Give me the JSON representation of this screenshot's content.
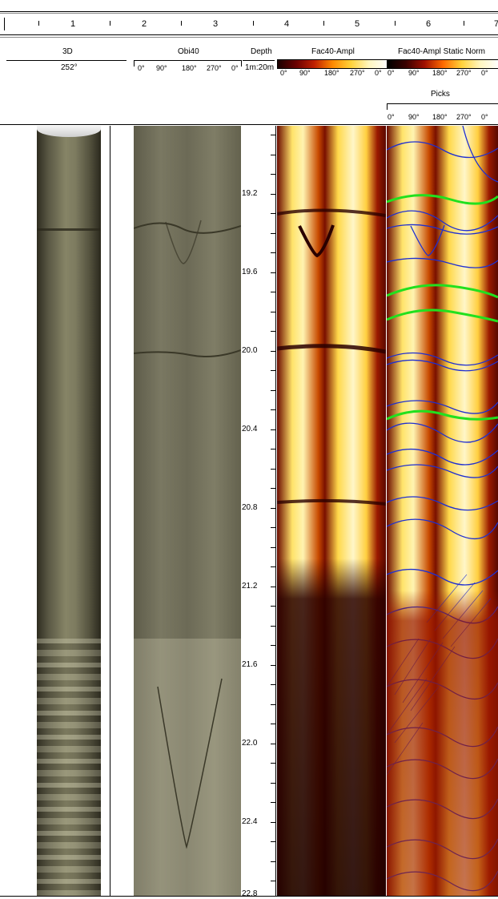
{
  "ruler": {
    "numbers": [
      "1",
      "2",
      "3",
      "4",
      "5",
      "6",
      "7"
    ]
  },
  "tracks": {
    "t1": {
      "title": "3D",
      "subtitle": "252°"
    },
    "t2": {
      "title": "Obi40",
      "scale": [
        "0°",
        "90°",
        "180°",
        "270°",
        "0°"
      ]
    },
    "t3": {
      "title": "Depth",
      "subtitle": "1m:20m"
    },
    "t4": {
      "title": "Fac40-Ampl",
      "scale": [
        "0°",
        "90°",
        "180°",
        "270°",
        "0°"
      ]
    },
    "t5": {
      "title": "Fac40-Ampl Static Norm",
      "scale": [
        "0°",
        "90°",
        "180°",
        "270°",
        "0°"
      ],
      "picks_title": "Picks",
      "picks_scale": [
        "0°",
        "90°",
        "180°",
        "270°",
        "0°"
      ]
    }
  },
  "depths": [
    "19.2",
    "19.6",
    "20.0",
    "20.4",
    "20.8",
    "21.2",
    "21.6",
    "22.0",
    "22.4",
    "22.8"
  ],
  "colors": {
    "amp_dark": "#2a0000",
    "amp_mid": "#c02000",
    "amp_bright": "#ffd23a",
    "amp_white": "#fffbe0",
    "pick_blue": "#1f2fd0",
    "pick_green": "#22e01e",
    "core": "#6e6e55"
  }
}
